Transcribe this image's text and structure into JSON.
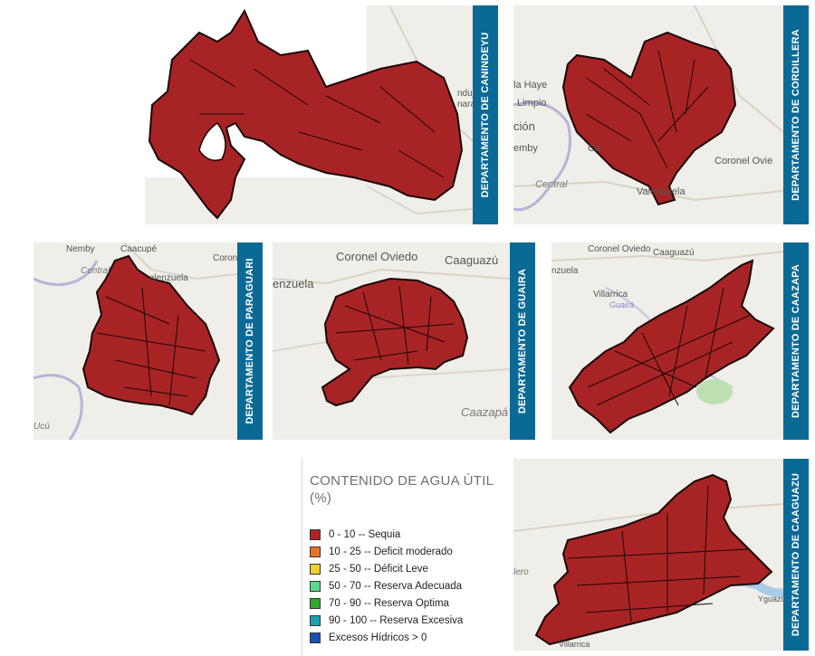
{
  "departments": {
    "canindeyu": {
      "label": "DEPARTAMENTO DE CANINDEYU",
      "places": [
        "nduju",
        "nara"
      ]
    },
    "cordillera": {
      "label": "DEPARTAMENTO DE CORDILLERA",
      "places": [
        "la Haye",
        "Limpio",
        "ción",
        "emby",
        "Central",
        "Ca",
        "Coronel Ovie",
        "Valenzuela"
      ]
    },
    "paraguari": {
      "label": "DEPARTAMENTO DE PARAGUARI",
      "places": [
        "Nemby",
        "Caacupé",
        "Coron",
        "Central",
        "alenzuela",
        "Ucú"
      ]
    },
    "guaira": {
      "label": "DEPARTAMENTO DE GUAIRA",
      "places": [
        "Coronel Oviedo",
        "Caaguazú",
        "enzuela",
        "Caazapá"
      ]
    },
    "caazapa": {
      "label": "DEPARTAMENTO DE CAAZAPA",
      "places": [
        "Coronel Oviedo",
        "Caaguazú",
        "nzuela",
        "Villarrica",
        "Guairá"
      ]
    },
    "caaguazu": {
      "label": "DEPARTAMENTO DE CAAGUAZU",
      "places": [
        "lero",
        "Yguazú",
        "Villarrica"
      ]
    }
  },
  "legend": {
    "title": "CONTENIDO DE AGUA ÚTIL (%)",
    "items": [
      {
        "label": "0 - 10 --  Sequia",
        "color": "#b22222"
      },
      {
        "label": "10 - 25 --  Deficit moderado",
        "color": "#e8742a"
      },
      {
        "label": "25 - 50 --  Déficit Leve",
        "color": "#f2d02a"
      },
      {
        "label": "50 - 70 --  Reserva Adecuada",
        "color": "#5ad88c"
      },
      {
        "label": "70 - 90 -- Reserva Optima",
        "color": "#2faa2f"
      },
      {
        "label": "90 - 100 -- Reserva Excesiva",
        "color": "#18a4b4"
      },
      {
        "label": "Excesos Hídricos  > 0",
        "color": "#1d4fb8"
      }
    ]
  },
  "colors": {
    "drought": "#a82424",
    "label_bg": "#0b6a95",
    "map_bg": "#efeee8"
  }
}
